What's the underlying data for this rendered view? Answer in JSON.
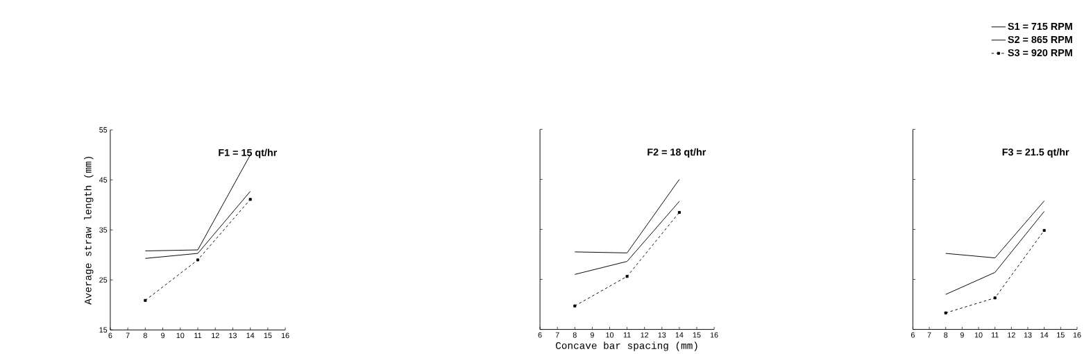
{
  "chart_data": [
    {
      "type": "line",
      "title": "F1 = 15 qt/hr",
      "ylabel": "Average straw length (mm)",
      "xlim": [
        6,
        16
      ],
      "xticks": [
        6,
        7,
        8,
        9,
        10,
        11,
        12,
        13,
        14,
        15,
        16
      ],
      "ylim": [
        15,
        55
      ],
      "yticks": [
        15,
        25,
        35,
        45,
        55
      ],
      "grid": false,
      "legend": false,
      "series": [
        {
          "color": "#000000",
          "line_style": "solid",
          "marker": "none",
          "x": [
            8,
            11,
            14
          ],
          "values": [
            30.8,
            31,
            50
          ]
        },
        {
          "color": "#000000",
          "line_style": "solid",
          "marker": "none",
          "x": [
            8,
            11,
            14
          ],
          "values": [
            29.3,
            30.3,
            42.7
          ]
        },
        {
          "color": "#000000",
          "line_style": "dashed",
          "marker": "square",
          "x": [
            8,
            11,
            14
          ],
          "values": [
            20.9,
            29,
            41.1
          ]
        }
      ]
    },
    {
      "type": "line",
      "title": "F2 = 18 qt/hr",
      "xlabel": "Concave bar spacing (mm)",
      "xlim": [
        6,
        16
      ],
      "xticks": [
        6,
        7,
        8,
        9,
        10,
        11,
        12,
        13,
        14,
        15,
        16
      ],
      "ylim": [
        15,
        55
      ],
      "yticks": [
        15,
        25,
        35,
        45,
        55
      ],
      "tick_labels": "x",
      "grid": false,
      "legend": false,
      "series": [
        {
          "color": "#000000",
          "line_style": "solid",
          "marker": "none",
          "x": [
            8,
            11,
            14
          ],
          "values": [
            30.5,
            30.3,
            45
          ]
        },
        {
          "color": "#000000",
          "line_style": "solid",
          "marker": "none",
          "x": [
            8,
            11,
            14
          ],
          "values": [
            26,
            28.6,
            40.6
          ]
        },
        {
          "color": "#000000",
          "line_style": "dashed",
          "marker": "square",
          "x": [
            8,
            11,
            14
          ],
          "values": [
            19.7,
            25.6,
            38.4
          ]
        }
      ]
    },
    {
      "type": "line",
      "title": "F3 = 21.5 qt/hr",
      "xlim": [
        6,
        16
      ],
      "xticks": [
        6,
        7,
        8,
        9,
        10,
        11,
        12,
        13,
        14,
        15,
        16
      ],
      "ylim": [
        15,
        55
      ],
      "yticks": [
        15,
        25,
        35,
        45,
        55
      ],
      "tick_labels": "x",
      "grid": false,
      "legend": "top right",
      "series": [
        {
          "name": "S1 = 715  RPM",
          "color": "#000000",
          "line_style": "solid",
          "marker": "none",
          "x": [
            8,
            11,
            14
          ],
          "values": [
            30.2,
            29.3,
            40.7
          ]
        },
        {
          "name": "S2 = 865 RPM",
          "color": "#000000",
          "line_style": "solid",
          "marker": "none",
          "x": [
            8,
            11,
            14
          ],
          "values": [
            22,
            26.4,
            38.6
          ]
        },
        {
          "name": "S3 = 920 RPM",
          "color": "#000000",
          "line_style": "dashed",
          "marker": "square",
          "x": [
            8,
            11,
            14
          ],
          "values": [
            18.3,
            21.3,
            34.8
          ]
        }
      ]
    }
  ]
}
